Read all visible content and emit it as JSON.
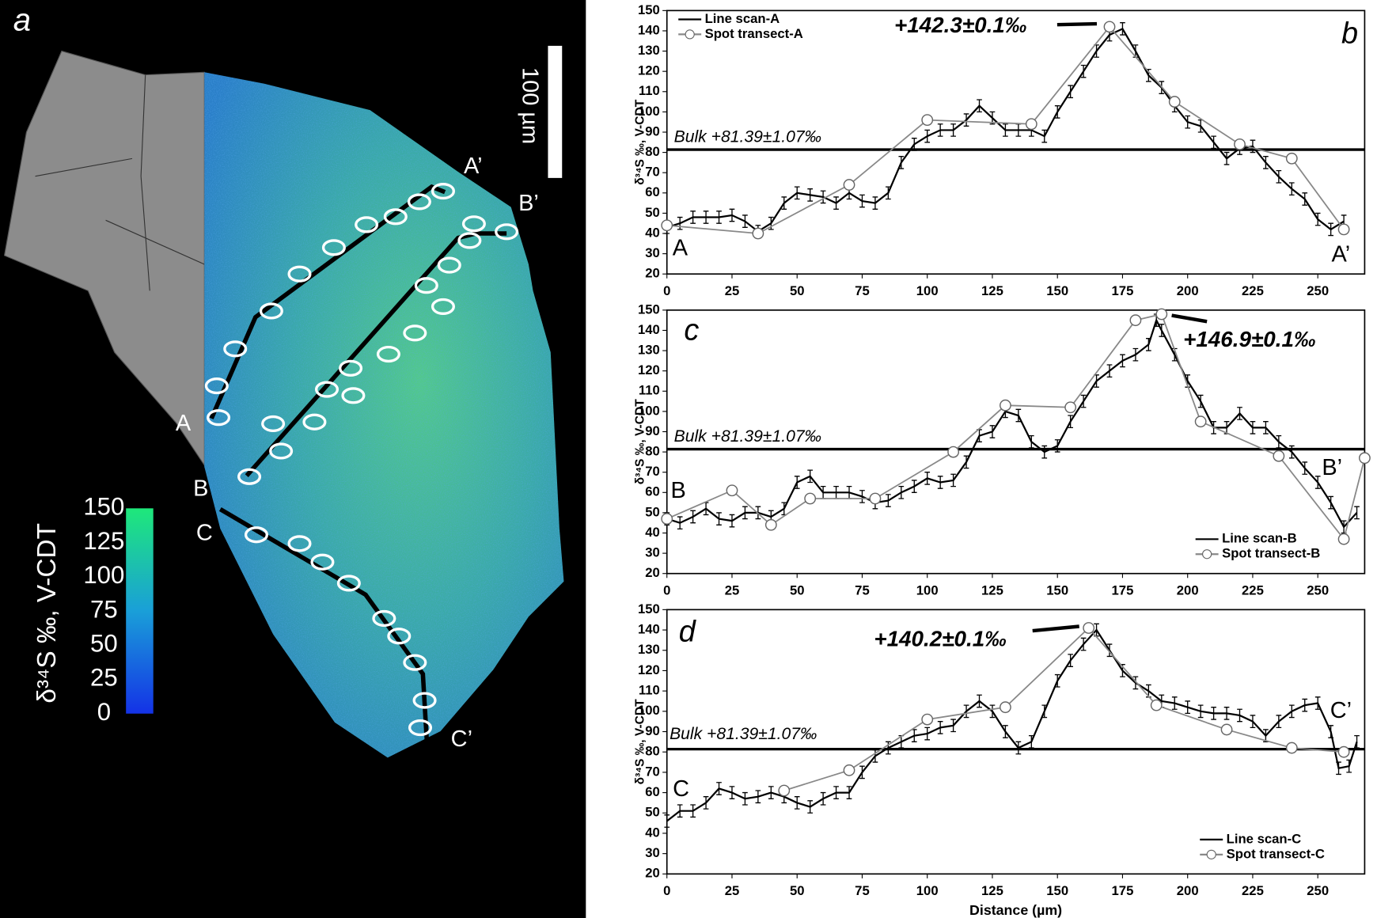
{
  "map_panel": {
    "panel_label": "a",
    "scale_bar_label": "100 µm",
    "path_labels": [
      "A",
      "A’",
      "B",
      "B’",
      "C",
      "C’"
    ],
    "colorbar": {
      "title": "δ³⁴S ‰, V-CDT",
      "lim": [
        0,
        150
      ],
      "ticks": [
        0,
        25,
        50,
        75,
        100,
        125,
        150
      ]
    }
  },
  "chart_data": [
    {
      "type": "line",
      "panel_label": "b",
      "ylabel": "δ³⁴S ‰, V-CDT",
      "xlim": [
        0,
        268
      ],
      "ylim": [
        20,
        150
      ],
      "xticks": [
        0,
        25,
        50,
        75,
        100,
        125,
        150,
        175,
        200,
        225,
        250
      ],
      "yticks": [
        20,
        30,
        40,
        50,
        60,
        70,
        80,
        90,
        100,
        110,
        120,
        130,
        140,
        150
      ],
      "legend": "upper left",
      "annotation": "+142.3±0.1‰",
      "endpoint_labels": [
        "A",
        "A’"
      ],
      "hlines": [
        {
          "value": 81.39,
          "label": "Bulk +81.39±1.07‰"
        }
      ],
      "series": [
        {
          "name": "Line scan-A",
          "color": "#000000",
          "error": 3,
          "x": [
            0,
            5,
            10,
            15,
            20,
            25,
            30,
            35,
            40,
            45,
            50,
            55,
            60,
            65,
            70,
            75,
            80,
            85,
            90,
            95,
            100,
            105,
            110,
            115,
            120,
            125,
            130,
            135,
            140,
            145,
            150,
            155,
            160,
            165,
            170,
            175,
            180,
            185,
            190,
            195,
            200,
            205,
            210,
            215,
            220,
            225,
            230,
            235,
            240,
            245,
            250,
            255,
            260
          ],
          "values": [
            43,
            45,
            48,
            48,
            48,
            49,
            46,
            41,
            45,
            55,
            60,
            59,
            58,
            55,
            60,
            56,
            55,
            60,
            75,
            84,
            88,
            91,
            91,
            96,
            103,
            97,
            91,
            91,
            91,
            88,
            100,
            110,
            120,
            130,
            138,
            141,
            130,
            118,
            112,
            103,
            95,
            93,
            85,
            77,
            82,
            83,
            75,
            68,
            62,
            57,
            47,
            42,
            46
          ]
        },
        {
          "name": "Spot transect-A",
          "color": "#888888",
          "marker": "o",
          "x": [
            0,
            35,
            70,
            100,
            140,
            170,
            195,
            220,
            240,
            260
          ],
          "values": [
            44,
            40,
            64,
            96,
            94,
            142,
            105,
            84,
            77,
            42
          ]
        }
      ]
    },
    {
      "type": "line",
      "panel_label": "c",
      "ylabel": "δ³⁴S ‰, V-CDT",
      "xlim": [
        0,
        268
      ],
      "ylim": [
        20,
        150
      ],
      "xticks": [
        0,
        25,
        50,
        75,
        100,
        125,
        150,
        175,
        200,
        225,
        250
      ],
      "yticks": [
        20,
        30,
        40,
        50,
        60,
        70,
        80,
        90,
        100,
        110,
        120,
        130,
        140,
        150
      ],
      "legend": "lower right",
      "annotation": "+146.9±0.1‰",
      "endpoint_labels": [
        "B",
        "B’"
      ],
      "hlines": [
        {
          "value": 81.39,
          "label": "Bulk +81.39±1.07‰"
        }
      ],
      "series": [
        {
          "name": "Line scan-B",
          "color": "#000000",
          "error": 3,
          "x": [
            0,
            5,
            10,
            15,
            20,
            25,
            30,
            35,
            40,
            45,
            50,
            55,
            60,
            65,
            70,
            75,
            80,
            85,
            90,
            95,
            100,
            105,
            110,
            115,
            120,
            125,
            130,
            135,
            140,
            145,
            150,
            155,
            160,
            165,
            170,
            175,
            180,
            185,
            188,
            190,
            195,
            200,
            205,
            210,
            215,
            220,
            225,
            230,
            235,
            240,
            245,
            250,
            255,
            260,
            265
          ],
          "values": [
            47,
            45,
            48,
            52,
            47,
            46,
            50,
            50,
            48,
            52,
            65,
            68,
            60,
            60,
            60,
            58,
            55,
            56,
            60,
            63,
            67,
            65,
            66,
            75,
            88,
            90,
            100,
            98,
            85,
            80,
            83,
            95,
            105,
            115,
            120,
            125,
            128,
            133,
            145,
            140,
            128,
            115,
            105,
            92,
            92,
            99,
            92,
            92,
            85,
            80,
            72,
            65,
            55,
            43,
            50
          ]
        },
        {
          "name": "Spot transect-B",
          "color": "#888888",
          "marker": "o",
          "x": [
            0,
            25,
            40,
            55,
            80,
            110,
            130,
            155,
            180,
            190,
            205,
            235,
            260,
            268
          ],
          "values": [
            47,
            61,
            44,
            57,
            57,
            80,
            103,
            102,
            145,
            148,
            95,
            78,
            37,
            77
          ]
        }
      ]
    },
    {
      "type": "line",
      "panel_label": "d",
      "ylabel": "δ³⁴S ‰, V-CDT",
      "xlabel": "Distance (µm)",
      "xlim": [
        0,
        268
      ],
      "ylim": [
        20,
        150
      ],
      "xticks": [
        0,
        25,
        50,
        75,
        100,
        125,
        150,
        175,
        200,
        225,
        250
      ],
      "yticks": [
        20,
        30,
        40,
        50,
        60,
        70,
        80,
        90,
        100,
        110,
        120,
        130,
        140,
        150
      ],
      "legend": "lower right",
      "annotation": "+140.2±0.1‰",
      "endpoint_labels": [
        "C",
        "C’"
      ],
      "hlines": [
        {
          "value": 81.39,
          "label": "Bulk +81.39±1.07‰"
        }
      ],
      "series": [
        {
          "name": "Line scan-C",
          "color": "#000000",
          "error": 3,
          "x": [
            0,
            5,
            10,
            15,
            20,
            25,
            30,
            35,
            40,
            45,
            50,
            55,
            60,
            65,
            70,
            75,
            80,
            85,
            90,
            95,
            100,
            105,
            110,
            115,
            120,
            125,
            130,
            135,
            140,
            145,
            150,
            155,
            160,
            165,
            170,
            175,
            180,
            185,
            190,
            195,
            200,
            205,
            210,
            215,
            220,
            225,
            230,
            235,
            240,
            245,
            250,
            255,
            258,
            262,
            265
          ],
          "values": [
            46,
            51,
            51,
            55,
            62,
            60,
            57,
            58,
            60,
            58,
            55,
            53,
            57,
            60,
            60,
            70,
            78,
            82,
            85,
            88,
            89,
            92,
            93,
            100,
            105,
            100,
            90,
            82,
            85,
            100,
            115,
            125,
            133,
            140,
            130,
            120,
            114,
            110,
            105,
            104,
            102,
            100,
            99,
            99,
            98,
            95,
            88,
            95,
            100,
            103,
            104,
            90,
            72,
            73,
            85
          ]
        },
        {
          "name": "Spot transect-C",
          "color": "#888888",
          "marker": "o",
          "x": [
            45,
            70,
            100,
            130,
            162,
            188,
            215,
            240,
            260
          ],
          "values": [
            61,
            71,
            96,
            102,
            141,
            103,
            91,
            82,
            80
          ]
        }
      ]
    }
  ]
}
